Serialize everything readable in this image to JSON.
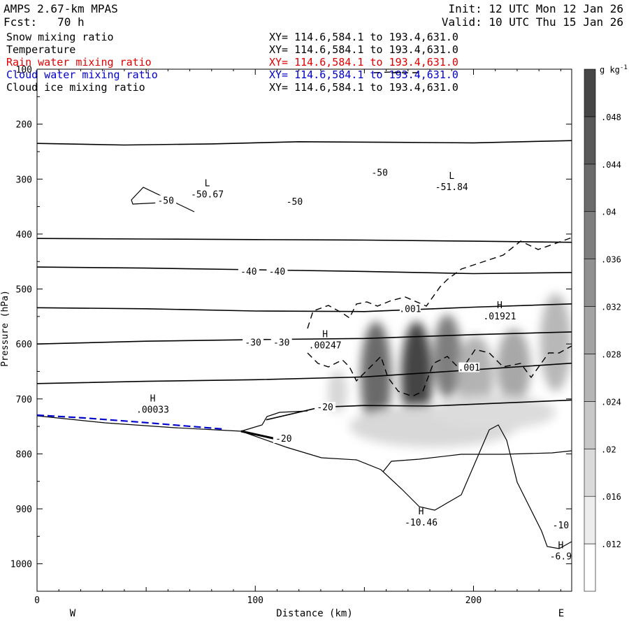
{
  "header": {
    "model": "AMPS 2.67-km MPAS",
    "forecast": "Fcst:   70 h",
    "init": "Init: 12 UTC Mon 12 Jan 26",
    "valid": "Valid: 10 UTC Thu 15 Jan 26"
  },
  "fields": [
    {
      "name": "Snow mixing ratio",
      "xy": "XY= 114.6,584.1 to 193.4,631.0",
      "color": "#000000"
    },
    {
      "name": "Temperature",
      "xy": "XY= 114.6,584.1 to 193.4,631.0",
      "color": "#000000"
    },
    {
      "name": "Rain water mixing ratio",
      "xy": "XY= 114.6,584.1 to 193.4,631.0",
      "color": "#e00000"
    },
    {
      "name": "Cloud water mixing ratio",
      "xy": "XY= 114.6,584.1 to 193.4,631.0",
      "color": "#0000cc"
    },
    {
      "name": "Cloud ice mixing ratio",
      "xy": "XY= 114.6,584.1 to 193.4,631.0",
      "color": "#000000"
    }
  ],
  "chart_data": {
    "type": "heatmap",
    "xlabel": "Distance (km)",
    "ylabel": "Pressure (hPa)",
    "xlim": [
      0,
      245
    ],
    "ylim": [
      1050,
      100
    ],
    "xticks": [
      0,
      100,
      200
    ],
    "yticks": [
      100,
      200,
      300,
      400,
      500,
      600,
      700,
      800,
      900,
      1000
    ],
    "direction_left": "W",
    "direction_right": "E",
    "colorbar": {
      "units": "g kg",
      "units_exp": "-1",
      "ticks": [
        ".012",
        ".016",
        ".02",
        ".024",
        ".028",
        ".032",
        ".036",
        ".04",
        ".044",
        ".048"
      ]
    },
    "temperature_contours": [
      {
        "label": "-50",
        "x": [
          0,
          40,
          80,
          120,
          160,
          200,
          245
        ],
        "p": [
          235,
          238,
          236,
          232,
          233,
          234,
          230
        ]
      },
      {
        "label": "-40",
        "x": [
          0,
          50,
          100,
          150,
          200,
          245
        ],
        "p": [
          408,
          409,
          410,
          411,
          413,
          415
        ]
      },
      {
        "label": "-40",
        "x": [
          0,
          50,
          100,
          150,
          200,
          245
        ],
        "p": [
          460,
          462,
          465,
          468,
          472,
          470
        ]
      },
      {
        "label": "-30",
        "x": [
          0,
          50,
          100,
          150,
          200,
          245
        ],
        "p": [
          534,
          536,
          540,
          541,
          533,
          527
        ]
      },
      {
        "label": "-30",
        "x": [
          0,
          50,
          100,
          150,
          200,
          245
        ],
        "p": [
          600,
          595,
          592,
          590,
          583,
          578
        ]
      },
      {
        "label": "-20",
        "x": [
          0,
          50,
          100,
          150,
          200,
          245
        ],
        "p": [
          672,
          668,
          665,
          660,
          647,
          635
        ]
      },
      {
        "label": "-20",
        "x": [
          105,
          130,
          150,
          180,
          210,
          245
        ],
        "p": [
          738,
          715,
          712,
          713,
          708,
          702
        ]
      }
    ],
    "annotations": [
      {
        "mark": "L",
        "value": "-50.67",
        "x": 78,
        "p": 323
      },
      {
        "mark": "L",
        "value": "-51.84",
        "x": 190,
        "p": 310
      },
      {
        "mark": "H",
        "value": ".01921",
        "x": 212,
        "p": 545
      },
      {
        "mark": "H",
        "value": ".00247",
        "x": 132,
        "p": 598
      },
      {
        "mark": "H",
        "value": ".00033",
        "x": 53,
        "p": 715
      },
      {
        "mark": "H",
        "value": "-10.46",
        "x": 176,
        "p": 920
      },
      {
        "mark": "H",
        "value": "-6.9",
        "x": 240,
        "p": 982
      }
    ],
    "contour_labels": [
      {
        "text": "-50",
        "x": 157,
        "p": 290
      },
      {
        "text": "-50",
        "x": 59,
        "p": 341
      },
      {
        "text": "-50",
        "x": 118,
        "p": 343
      },
      {
        "text": "-40",
        "x": 97,
        "p": 470
      },
      {
        "text": "-40",
        "x": 110,
        "p": 470
      },
      {
        "text": ".001",
        "x": 171,
        "p": 538
      },
      {
        "text": "-30",
        "x": 99,
        "p": 599
      },
      {
        "text": "-30",
        "x": 112,
        "p": 599
      },
      {
        "text": ".001",
        "x": 198,
        "p": 645
      },
      {
        "text": "-20",
        "x": 132,
        "p": 717
      },
      {
        "text": "-20",
        "x": 113,
        "p": 774
      },
      {
        "text": "-10",
        "x": 240,
        "p": 932
      }
    ]
  }
}
